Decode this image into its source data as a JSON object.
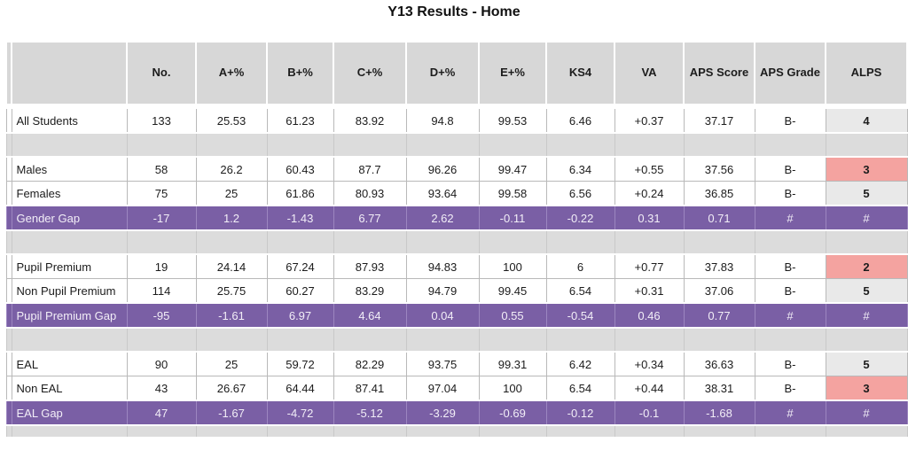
{
  "chart_data": {
    "type": "table",
    "title": "Y13 Results - Home",
    "columns": [
      "",
      "No.",
      "A+%",
      "B+%",
      "C+%",
      "D+%",
      "E+%",
      "KS4",
      "VA",
      "APS Score",
      "APS Grade",
      "ALPS"
    ],
    "rows": [
      {
        "type": "data",
        "label": "All Students",
        "values": [
          "133",
          "25.53",
          "61.23",
          "83.92",
          "94.8",
          "99.53",
          "6.46",
          "+0.37",
          "37.17",
          "B-",
          "4"
        ],
        "alps": "neutral"
      },
      {
        "type": "spacer"
      },
      {
        "type": "data",
        "label": "Males",
        "values": [
          "58",
          "26.2",
          "60.43",
          "87.7",
          "96.26",
          "99.47",
          "6.34",
          "+0.55",
          "37.56",
          "B-",
          "3"
        ],
        "alps": "flagged"
      },
      {
        "type": "data",
        "label": "Females",
        "values": [
          "75",
          "25",
          "61.86",
          "80.93",
          "93.64",
          "99.58",
          "6.56",
          "+0.24",
          "36.85",
          "B-",
          "5"
        ],
        "alps": "neutral"
      },
      {
        "type": "gap",
        "label": "Gender Gap",
        "values": [
          "-17",
          "1.2",
          "-1.43",
          "6.77",
          "2.62",
          "-0.11",
          "-0.22",
          "0.31",
          "0.71",
          "#",
          "#"
        ]
      },
      {
        "type": "spacer"
      },
      {
        "type": "data",
        "label": "Pupil Premium",
        "values": [
          "19",
          "24.14",
          "67.24",
          "87.93",
          "94.83",
          "100",
          "6",
          "+0.77",
          "37.83",
          "B-",
          "2"
        ],
        "alps": "flagged"
      },
      {
        "type": "data",
        "label": "Non Pupil Premium",
        "values": [
          "114",
          "25.75",
          "60.27",
          "83.29",
          "94.79",
          "99.45",
          "6.54",
          "+0.31",
          "37.06",
          "B-",
          "5"
        ],
        "alps": "neutral"
      },
      {
        "type": "gap",
        "label": "Pupil Premium Gap",
        "values": [
          "-95",
          "-1.61",
          "6.97",
          "4.64",
          "0.04",
          "0.55",
          "-0.54",
          "0.46",
          "0.77",
          "#",
          "#"
        ]
      },
      {
        "type": "spacer"
      },
      {
        "type": "data",
        "label": "EAL",
        "values": [
          "90",
          "25",
          "59.72",
          "82.29",
          "93.75",
          "99.31",
          "6.42",
          "+0.34",
          "36.63",
          "B-",
          "5"
        ],
        "alps": "neutral"
      },
      {
        "type": "data",
        "label": "Non EAL",
        "values": [
          "43",
          "26.67",
          "64.44",
          "87.41",
          "97.04",
          "100",
          "6.54",
          "+0.44",
          "38.31",
          "B-",
          "3"
        ],
        "alps": "flagged"
      },
      {
        "type": "gap",
        "label": "EAL Gap",
        "values": [
          "47",
          "-1.67",
          "-4.72",
          "-5.12",
          "-3.29",
          "-0.69",
          "-0.12",
          "-0.1",
          "-1.68",
          "#",
          "#"
        ]
      },
      {
        "type": "bottom"
      }
    ],
    "layout_hints": {
      "gap_rows_are_purple": true,
      "alps_flagged_cells_are_pink": true,
      "grid": "excel-style light gray"
    }
  },
  "colors": {
    "header_bg": "#d7d7d7",
    "spacer_bg": "#dcdcdc",
    "gap_row_bg": "#7a5fa5",
    "gap_row_text": "#f2eef7",
    "alps_neutral_bg": "#e9e9e9",
    "alps_flagged_bg": "#f4a3a0"
  }
}
